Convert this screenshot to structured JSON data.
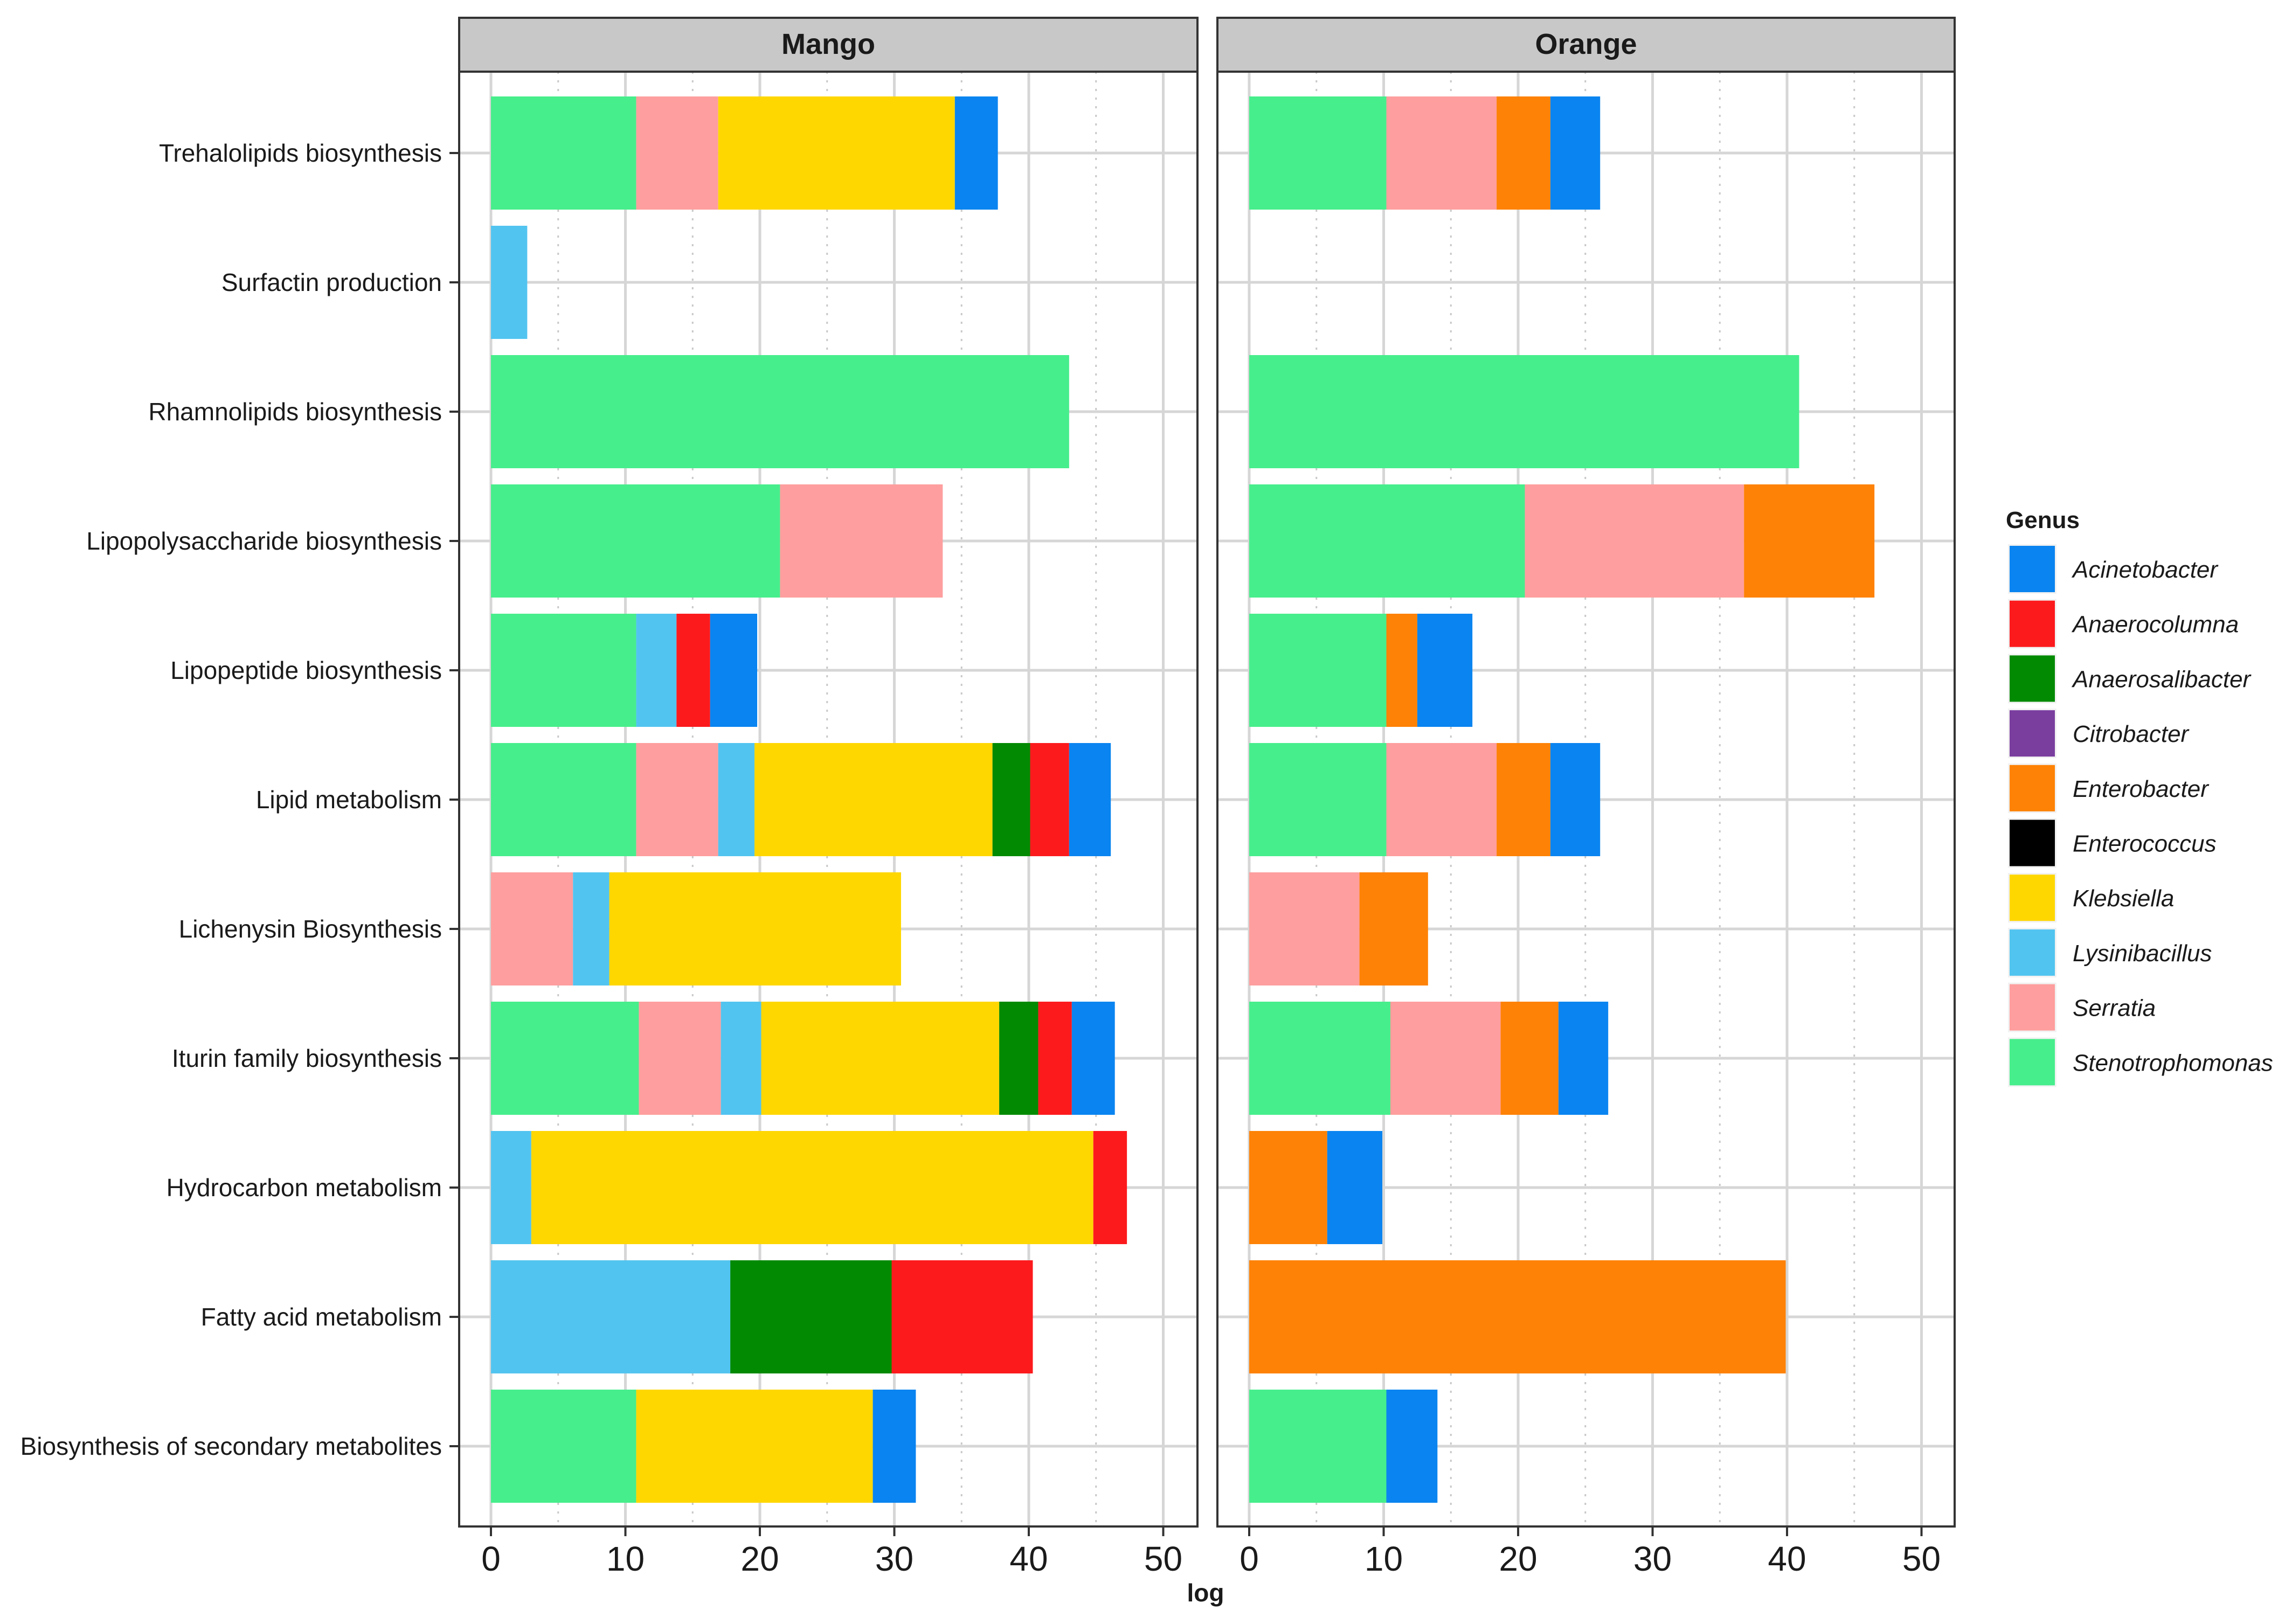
{
  "chart_data": {
    "type": "bar",
    "orientation": "horizontal",
    "stacked": true,
    "xlabel": "log",
    "xlim": [
      0,
      55
    ],
    "xticks": [
      0,
      10,
      20,
      30,
      40,
      50
    ],
    "grid": true,
    "legend_position": "right",
    "categories": [
      "Trehalolipids biosynthesis",
      "Surfactin production",
      "Rhamnolipids biosynthesis",
      "Lipopolysaccharide biosynthesis",
      "Lipopeptide biosynthesis",
      "Lipid metabolism",
      "Lichenysin Biosynthesis",
      "Iturin family biosynthesis",
      "Hydrocarbon metabolism",
      "Fatty acid metabolism",
      "Biosynthesis of secondary metabolites"
    ],
    "legend": {
      "title": "Genus",
      "entries": [
        {
          "name": "Acinetobacter",
          "color": "#0a84f0"
        },
        {
          "name": "Anaerocolumna",
          "color": "#fc1a1d"
        },
        {
          "name": "Anaerosalibacter",
          "color": "#028a02"
        },
        {
          "name": "Citrobacter",
          "color": "#7a3e9f"
        },
        {
          "name": "Enterobacter",
          "color": "#fe8205"
        },
        {
          "name": "Enterococcus",
          "color": "#000000"
        },
        {
          "name": "Klebsiella",
          "color": "#ffd700"
        },
        {
          "name": "Lysinibacillus",
          "color": "#52c4f0"
        },
        {
          "name": "Serratia",
          "color": "#fe9e9e"
        },
        {
          "name": "Stenotrophomonas",
          "color": "#47ee8c"
        }
      ]
    },
    "panels": [
      {
        "title": "Mango",
        "bars": [
          [
            {
              "genus": "Stenotrophomonas",
              "value": 10.8
            },
            {
              "genus": "Serratia",
              "value": 6.1
            },
            {
              "genus": "Klebsiella",
              "value": 17.6
            },
            {
              "genus": "Acinetobacter",
              "value": 3.2
            }
          ],
          [
            {
              "genus": "Lysinibacillus",
              "value": 2.7
            }
          ],
          [
            {
              "genus": "Stenotrophomonas",
              "value": 43.0
            }
          ],
          [
            {
              "genus": "Stenotrophomonas",
              "value": 21.5
            },
            {
              "genus": "Serratia",
              "value": 12.1
            }
          ],
          [
            {
              "genus": "Stenotrophomonas",
              "value": 10.8
            },
            {
              "genus": "Lysinibacillus",
              "value": 3.0
            },
            {
              "genus": "Anaerocolumna",
              "value": 2.5
            },
            {
              "genus": "Acinetobacter",
              "value": 3.5
            }
          ],
          [
            {
              "genus": "Stenotrophomonas",
              "value": 10.8
            },
            {
              "genus": "Serratia",
              "value": 6.1
            },
            {
              "genus": "Lysinibacillus",
              "value": 2.7
            },
            {
              "genus": "Klebsiella",
              "value": 17.7
            },
            {
              "genus": "Anaerosalibacter",
              "value": 2.8
            },
            {
              "genus": "Anaerocolumna",
              "value": 2.9
            },
            {
              "genus": "Acinetobacter",
              "value": 3.1
            }
          ],
          [
            {
              "genus": "Serratia",
              "value": 6.1
            },
            {
              "genus": "Lysinibacillus",
              "value": 2.7
            },
            {
              "genus": "Klebsiella",
              "value": 21.7
            }
          ],
          [
            {
              "genus": "Stenotrophomonas",
              "value": 11.0
            },
            {
              "genus": "Serratia",
              "value": 6.1
            },
            {
              "genus": "Lysinibacillus",
              "value": 3.0
            },
            {
              "genus": "Klebsiella",
              "value": 17.7
            },
            {
              "genus": "Anaerosalibacter",
              "value": 2.9
            },
            {
              "genus": "Anaerocolumna",
              "value": 2.5
            },
            {
              "genus": "Acinetobacter",
              "value": 3.2
            }
          ],
          [
            {
              "genus": "Lysinibacillus",
              "value": 3.0
            },
            {
              "genus": "Klebsiella",
              "value": 41.8
            },
            {
              "genus": "Anaerocolumna",
              "value": 2.5
            }
          ],
          [
            {
              "genus": "Lysinibacillus",
              "value": 17.8
            },
            {
              "genus": "Anaerosalibacter",
              "value": 12.0
            },
            {
              "genus": "Anaerocolumna",
              "value": 10.5
            }
          ],
          [
            {
              "genus": "Stenotrophomonas",
              "value": 10.8
            },
            {
              "genus": "Klebsiella",
              "value": 17.6
            },
            {
              "genus": "Acinetobacter",
              "value": 3.2
            }
          ]
        ]
      },
      {
        "title": "Orange",
        "bars": [
          [
            {
              "genus": "Stenotrophomonas",
              "value": 10.2
            },
            {
              "genus": "Serratia",
              "value": 8.2
            },
            {
              "genus": "Enterobacter",
              "value": 4.0
            },
            {
              "genus": "Acinetobacter",
              "value": 3.7
            }
          ],
          [],
          [
            {
              "genus": "Stenotrophomonas",
              "value": 40.9
            }
          ],
          [
            {
              "genus": "Stenotrophomonas",
              "value": 20.5
            },
            {
              "genus": "Serratia",
              "value": 16.3
            },
            {
              "genus": "Enterobacter",
              "value": 9.7
            }
          ],
          [
            {
              "genus": "Stenotrophomonas",
              "value": 10.2
            },
            {
              "genus": "Enterobacter",
              "value": 2.3
            },
            {
              "genus": "Acinetobacter",
              "value": 4.1
            }
          ],
          [
            {
              "genus": "Stenotrophomonas",
              "value": 10.2
            },
            {
              "genus": "Serratia",
              "value": 8.2
            },
            {
              "genus": "Enterobacter",
              "value": 4.0
            },
            {
              "genus": "Acinetobacter",
              "value": 3.7
            }
          ],
          [
            {
              "genus": "Serratia",
              "value": 8.2
            },
            {
              "genus": "Enterobacter",
              "value": 5.1
            }
          ],
          [
            {
              "genus": "Stenotrophomonas",
              "value": 10.5
            },
            {
              "genus": "Serratia",
              "value": 8.2
            },
            {
              "genus": "Enterobacter",
              "value": 4.3
            },
            {
              "genus": "Acinetobacter",
              "value": 3.7
            }
          ],
          [
            {
              "genus": "Enterobacter",
              "value": 5.8
            },
            {
              "genus": "Acinetobacter",
              "value": 4.1
            }
          ],
          [
            {
              "genus": "Enterobacter",
              "value": 39.9
            }
          ],
          [
            {
              "genus": "Stenotrophomonas",
              "value": 10.2
            },
            {
              "genus": "Acinetobacter",
              "value": 3.8
            }
          ]
        ]
      }
    ]
  }
}
